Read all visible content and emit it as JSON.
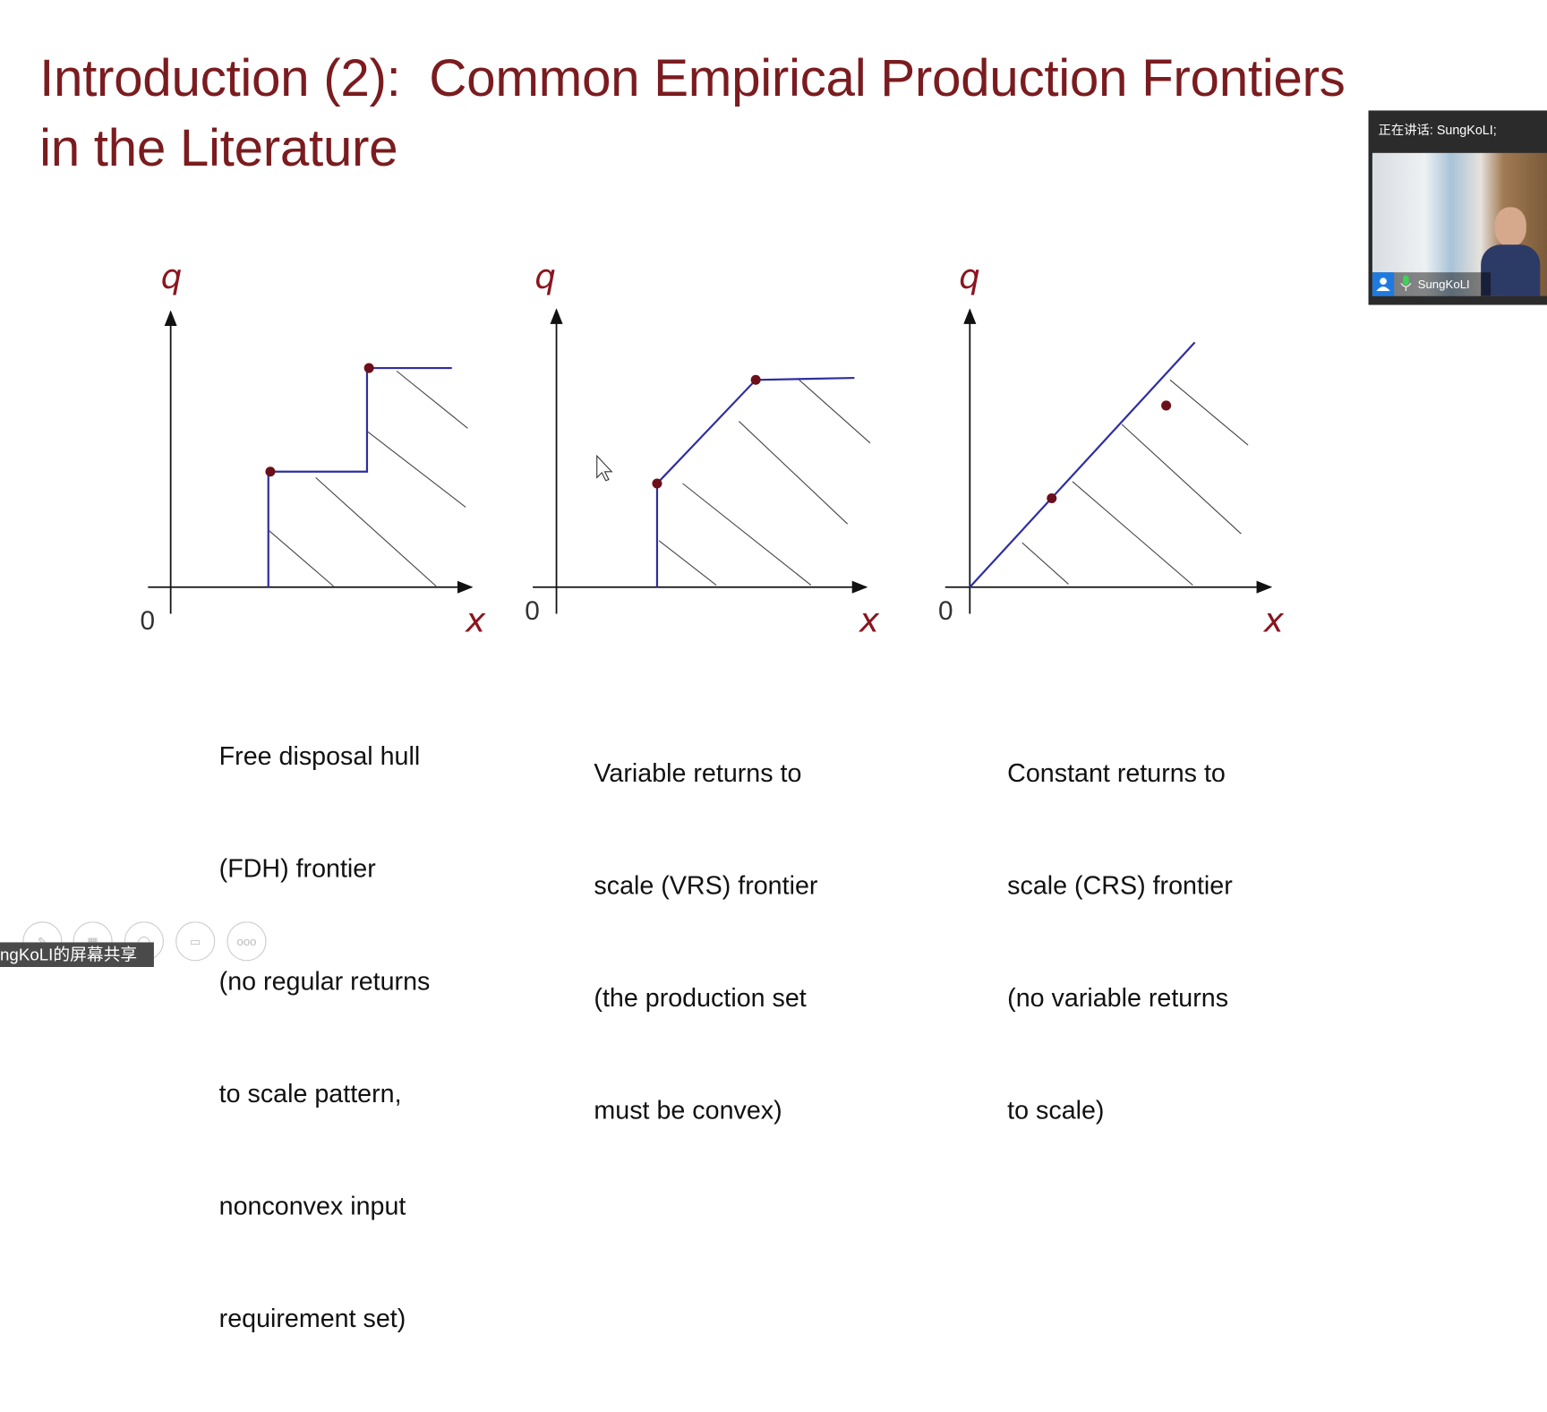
{
  "slide": {
    "title_line1": "Introduction (2):  Common Empirical Production Frontiers",
    "title_line2": "in the Literature",
    "axis": {
      "y": "q",
      "x": "x",
      "origin": "0"
    },
    "panels": [
      {
        "name": "FDH",
        "caption": [
          "Free disposal hull",
          "(FDH) frontier",
          "(no regular returns",
          "to scale pattern,",
          "nonconvex input",
          "requirement set)"
        ]
      },
      {
        "name": "VRS",
        "caption": [
          "Variable returns to",
          "scale (VRS) frontier",
          "(the production set",
          "must be convex)"
        ]
      },
      {
        "name": "CRS",
        "caption": [
          "Constant returns to",
          "scale (CRS) frontier",
          "(no variable returns",
          "to scale)"
        ]
      }
    ],
    "colors": {
      "title": "#7a1c1f",
      "frontier": "#2e2ea0",
      "dot": "#6b0f1a"
    }
  },
  "video": {
    "speaking_label": "正在讲话: SungKoLI;",
    "participant": "SungKoLI"
  },
  "share_banner": "ngKoLI的屏幕共享",
  "toolbar": {
    "more_label": "ooo"
  }
}
